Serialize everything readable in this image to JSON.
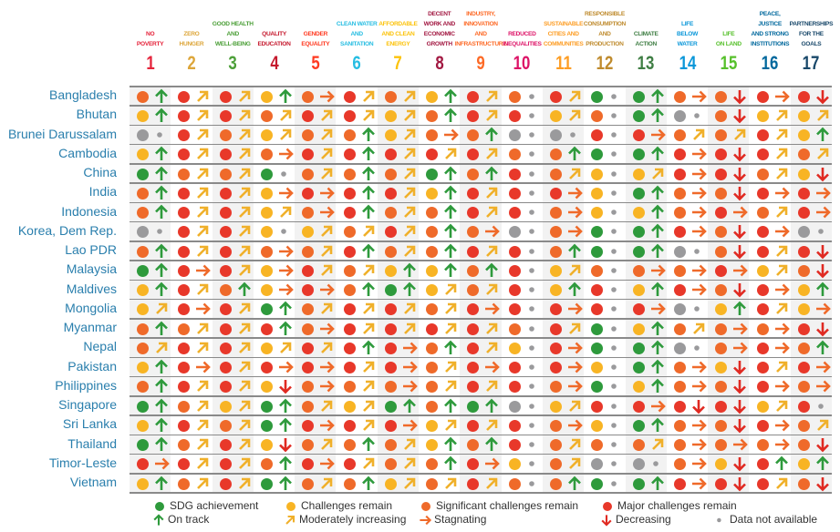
{
  "chart_data": {
    "type": "heatmap",
    "title": "",
    "status_colors": {
      "G": "#2e9a3c",
      "Y": "#f8b424",
      "O": "#ef6a2a",
      "R": "#e8382a",
      "X": "#9a9a9c"
    },
    "trend_colors": {
      "U": "#2e9a3c",
      "M": "#f0b02a",
      "S": "#ef6a2a",
      "D": "#e02a22",
      "N": "#9a9a9c"
    },
    "goals": [
      {
        "number": "1",
        "label": [
          "NO",
          "POVERTY"
        ],
        "color": "#e5243b"
      },
      {
        "number": "2",
        "label": [
          "ZERO",
          "HUNGER"
        ],
        "color": "#dda63a"
      },
      {
        "number": "3",
        "label": [
          "GOOD HEALTH",
          "AND",
          "WELL-BEING"
        ],
        "color": "#4c9f38"
      },
      {
        "number": "4",
        "label": [
          "QUALITY",
          "EDUCATION"
        ],
        "color": "#c5192d"
      },
      {
        "number": "5",
        "label": [
          "GENDER",
          "EQUALITY"
        ],
        "color": "#ff3a21"
      },
      {
        "number": "6",
        "label": [
          "CLEAN WATER",
          "AND",
          "SANITATION"
        ],
        "color": "#26bde2"
      },
      {
        "number": "7",
        "label": [
          "AFFORDABLE",
          "AND CLEAN",
          "ENERGY"
        ],
        "color": "#fcc30b"
      },
      {
        "number": "8",
        "label": [
          "DECENT",
          "WORK AND",
          "ECONOMIC",
          "GROWTH"
        ],
        "color": "#a21942"
      },
      {
        "number": "9",
        "label": [
          "INDUSTRY,",
          "INNOVATION",
          "AND",
          "INFRASTRUCTURE"
        ],
        "color": "#fd6925"
      },
      {
        "number": "10",
        "label": [
          "REDUCED",
          "INEQUALITIES"
        ],
        "color": "#dd1367"
      },
      {
        "number": "11",
        "label": [
          "SUSTAINABLE",
          "CITIES AND",
          "COMMUNITIES"
        ],
        "color": "#fd9d24"
      },
      {
        "number": "12",
        "label": [
          "RESPONSIBLE",
          "CONSUMPTION",
          "AND",
          "PRODUCTION"
        ],
        "color": "#bf8b2e"
      },
      {
        "number": "13",
        "label": [
          "CLIMATE",
          "ACTION"
        ],
        "color": "#3f7e44"
      },
      {
        "number": "14",
        "label": [
          "LIFE",
          "BELOW",
          "WATER"
        ],
        "color": "#0a97d9"
      },
      {
        "number": "15",
        "label": [
          "LIFE",
          "ON LAND"
        ],
        "color": "#56c02b"
      },
      {
        "number": "16",
        "label": [
          "PEACE,",
          "JUSTICE",
          "AND STRONG",
          "INSTITUTIONS"
        ],
        "color": "#00689d"
      },
      {
        "number": "17",
        "label": [
          "PARTNERSHIPS",
          "FOR THE",
          "GOALS"
        ],
        "color": "#19486a"
      }
    ],
    "countries": [
      {
        "name": "Bangladesh",
        "cells": [
          "OU",
          "RM",
          "RM",
          "YU",
          "OS",
          "RM",
          "OM",
          "YU",
          "RM",
          "ON",
          "RM",
          "GN",
          "GU",
          "OS",
          "OD",
          "RS",
          "RD"
        ]
      },
      {
        "name": "Bhutan",
        "cells": [
          "YU",
          "RM",
          "RM",
          "OM",
          "RM",
          "RM",
          "YM",
          "OU",
          "RM",
          "RN",
          "YM",
          "ON",
          "GU",
          "XN",
          "OD",
          "YM",
          "YM"
        ]
      },
      {
        "name": "Brunei Darussalam",
        "cells": [
          "XN",
          "RM",
          "OM",
          "YM",
          "OM",
          "OU",
          "YM",
          "OS",
          "OU",
          "XN",
          "XN",
          "RN",
          "RS",
          "OM",
          "OM",
          "RM",
          "YU"
        ]
      },
      {
        "name": "Cambodia",
        "cells": [
          "YU",
          "RM",
          "RM",
          "OS",
          "RM",
          "RU",
          "RM",
          "RM",
          "RM",
          "ON",
          "OU",
          "GN",
          "GU",
          "RS",
          "RD",
          "RM",
          "OM"
        ]
      },
      {
        "name": "China",
        "cells": [
          "GU",
          "OM",
          "OM",
          "GN",
          "OM",
          "OU",
          "OM",
          "GU",
          "OU",
          "RN",
          "OM",
          "YN",
          "YM",
          "RS",
          "RD",
          "OM",
          "YD"
        ]
      },
      {
        "name": "India",
        "cells": [
          "OU",
          "RM",
          "RM",
          "YS",
          "RS",
          "RU",
          "RM",
          "YU",
          "RM",
          "RN",
          "RS",
          "YN",
          "GU",
          "OS",
          "OD",
          "RS",
          "RS"
        ]
      },
      {
        "name": "Indonesia",
        "cells": [
          "OU",
          "RM",
          "RM",
          "YM",
          "OS",
          "RU",
          "OM",
          "OU",
          "RM",
          "RN",
          "OS",
          "YN",
          "YU",
          "OS",
          "RS",
          "OM",
          "RS"
        ]
      },
      {
        "name": "Korea, Dem Rep.",
        "cells": [
          "XN",
          "RM",
          "RM",
          "YN",
          "YM",
          "OM",
          "RM",
          "OU",
          "OS",
          "XN",
          "OS",
          "GN",
          "GU",
          "RS",
          "OD",
          "RS",
          "XN"
        ]
      },
      {
        "name": "Lao PDR",
        "cells": [
          "OU",
          "RM",
          "RM",
          "OS",
          "OM",
          "RU",
          "OM",
          "OU",
          "RM",
          "RN",
          "OU",
          "GN",
          "GU",
          "XN",
          "OD",
          "RM",
          "RD"
        ]
      },
      {
        "name": "Malaysia",
        "cells": [
          "GU",
          "RS",
          "RM",
          "YS",
          "RM",
          "OM",
          "YU",
          "YU",
          "OU",
          "RN",
          "YM",
          "ON",
          "OS",
          "OS",
          "RS",
          "YM",
          "OD"
        ]
      },
      {
        "name": "Maldives",
        "cells": [
          "YU",
          "RM",
          "OU",
          "YS",
          "RS",
          "OU",
          "GU",
          "YM",
          "OM",
          "RN",
          "YU",
          "RN",
          "YU",
          "RS",
          "OD",
          "RS",
          "YU"
        ]
      },
      {
        "name": "Mongolia",
        "cells": [
          "YM",
          "RS",
          "RM",
          "GU",
          "OM",
          "RM",
          "RM",
          "OM",
          "RS",
          "RN",
          "RS",
          "RN",
          "RS",
          "XN",
          "YU",
          "RM",
          "YS"
        ]
      },
      {
        "name": "Myanmar",
        "cells": [
          "OU",
          "OM",
          "RM",
          "RU",
          "OS",
          "RM",
          "RM",
          "RM",
          "RM",
          "ON",
          "RM",
          "GN",
          "YU",
          "OM",
          "OS",
          "OS",
          "RD"
        ]
      },
      {
        "name": "Nepal",
        "cells": [
          "OM",
          "RM",
          "RM",
          "YM",
          "RM",
          "RU",
          "RS",
          "OU",
          "RM",
          "YN",
          "RS",
          "GN",
          "GU",
          "XN",
          "OS",
          "RS",
          "OU"
        ]
      },
      {
        "name": "Pakistan",
        "cells": [
          "YU",
          "RS",
          "RM",
          "RS",
          "RS",
          "RM",
          "RS",
          "OM",
          "RS",
          "RN",
          "RS",
          "YN",
          "GU",
          "OS",
          "YD",
          "RM",
          "RS"
        ]
      },
      {
        "name": "Philippines",
        "cells": [
          "OU",
          "RM",
          "RM",
          "YD",
          "OS",
          "OM",
          "OS",
          "OM",
          "RM",
          "RN",
          "OS",
          "GN",
          "YU",
          "OS",
          "OD",
          "RS",
          "OS"
        ]
      },
      {
        "name": "Singapore",
        "cells": [
          "GU",
          "OM",
          "YM",
          "GU",
          "OM",
          "YM",
          "GU",
          "OU",
          "GU",
          "XN",
          "YM",
          "RN",
          "RS",
          "RD",
          "RD",
          "YM",
          "RN"
        ]
      },
      {
        "name": "Sri Lanka",
        "cells": [
          "YU",
          "RM",
          "OM",
          "GU",
          "RS",
          "RM",
          "RS",
          "YM",
          "RM",
          "RN",
          "OS",
          "YN",
          "GU",
          "OS",
          "OD",
          "RS",
          "OM"
        ]
      },
      {
        "name": "Thailand",
        "cells": [
          "GU",
          "OM",
          "RM",
          "YD",
          "OM",
          "OU",
          "OM",
          "YU",
          "OU",
          "RN",
          "OM",
          "ON",
          "OM",
          "OS",
          "OS",
          "OS",
          "OD"
        ]
      },
      {
        "name": "Timor-Leste",
        "cells": [
          "RS",
          "RM",
          "RM",
          "OU",
          "RS",
          "RM",
          "OM",
          "OU",
          "RS",
          "YN",
          "OM",
          "XN",
          "XN",
          "OS",
          "YD",
          "RU",
          "YU"
        ]
      },
      {
        "name": "Vietnam",
        "cells": [
          "YU",
          "OM",
          "RM",
          "GU",
          "OM",
          "OU",
          "YM",
          "OM",
          "RM",
          "ON",
          "OU",
          "GN",
          "GU",
          "RS",
          "RD",
          "RM",
          "OD"
        ]
      }
    ],
    "legend": {
      "status": [
        {
          "code": "G",
          "label": "SDG achievement"
        },
        {
          "code": "Y",
          "label": "Challenges remain"
        },
        {
          "code": "O",
          "label": "Significant challenges remain"
        },
        {
          "code": "R",
          "label": "Major challenges remain"
        }
      ],
      "trend": [
        {
          "code": "U",
          "label": "On track"
        },
        {
          "code": "M",
          "label": "Moderately increasing"
        },
        {
          "code": "S",
          "label": "Stagnating"
        },
        {
          "code": "D",
          "label": "Decreasing"
        },
        {
          "code": "N",
          "label": "Data not available"
        }
      ]
    }
  }
}
